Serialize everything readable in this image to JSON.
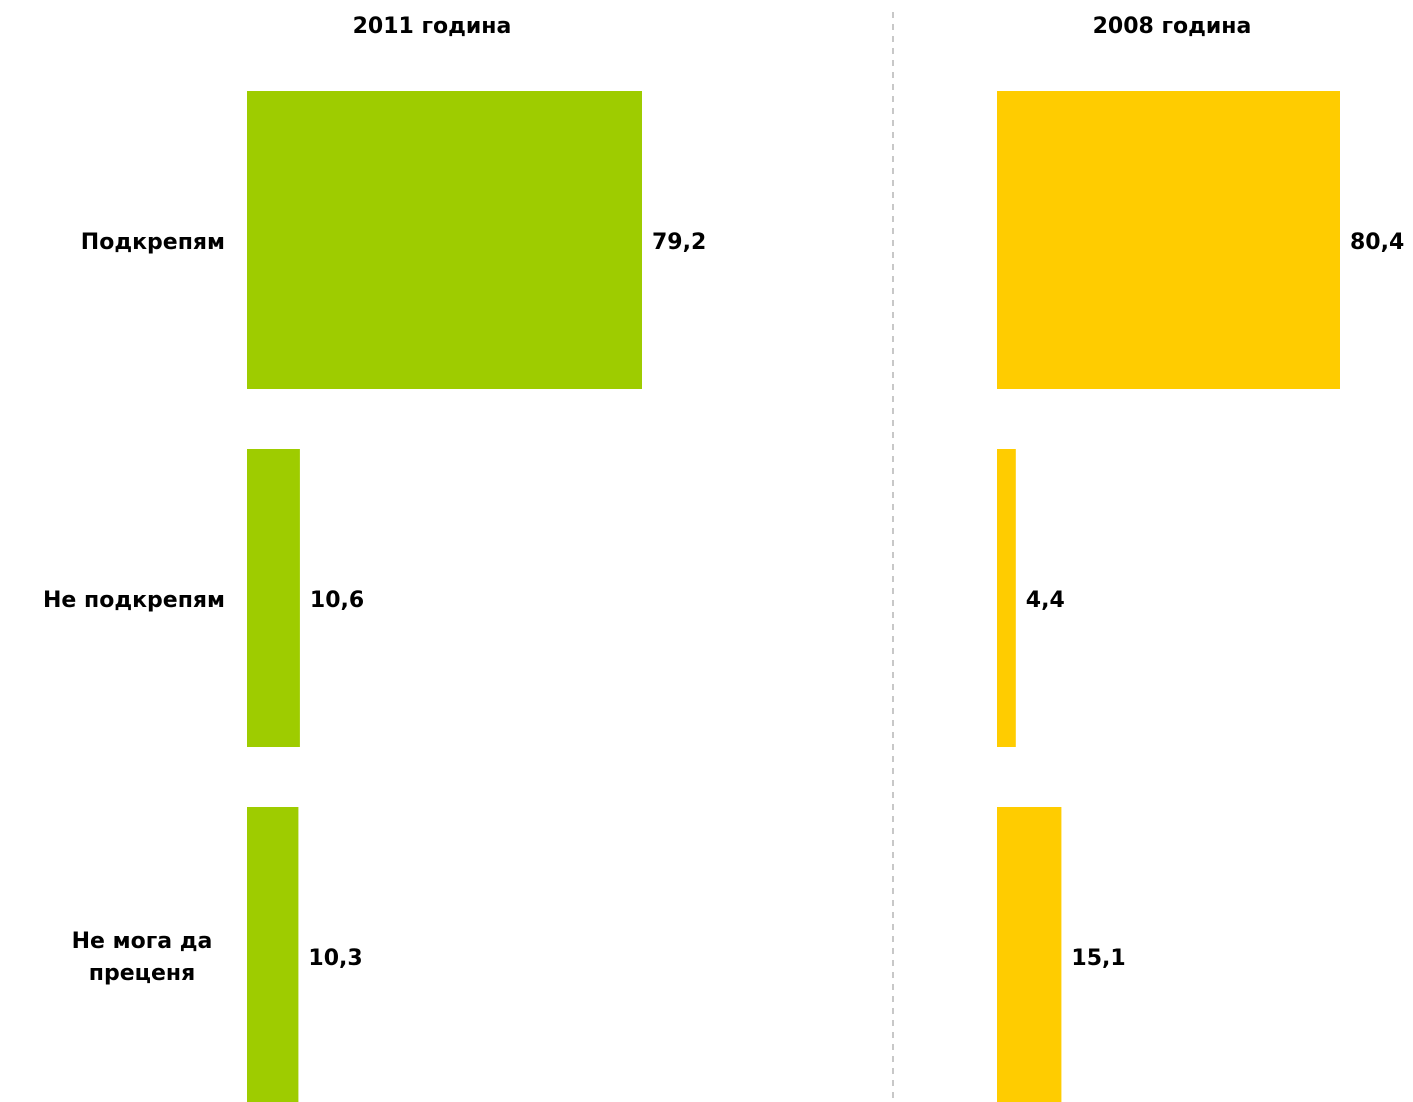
{
  "chart_data": [
    {
      "type": "bar",
      "orientation": "horizontal",
      "title": "2011 година",
      "categories": [
        "Подкрепям",
        "Не подкрепям",
        "Не мога да преценя"
      ],
      "values": [
        79.2,
        10.6,
        10.3
      ],
      "value_labels": [
        "79,2",
        "10,6",
        "10,3"
      ],
      "xlim": [
        0,
        100
      ],
      "color": "#9ECC00",
      "grid": false
    },
    {
      "type": "bar",
      "orientation": "horizontal",
      "title": "2008 година",
      "categories": [
        "Подкрепям",
        "Не подкрепям",
        "Не мога да преценя"
      ],
      "values": [
        80.4,
        4.4,
        15.1
      ],
      "value_labels": [
        "80,4",
        "4,4",
        "15,1"
      ],
      "xlim": [
        0,
        100
      ],
      "color": "#FFCC00",
      "grid": false
    }
  ]
}
